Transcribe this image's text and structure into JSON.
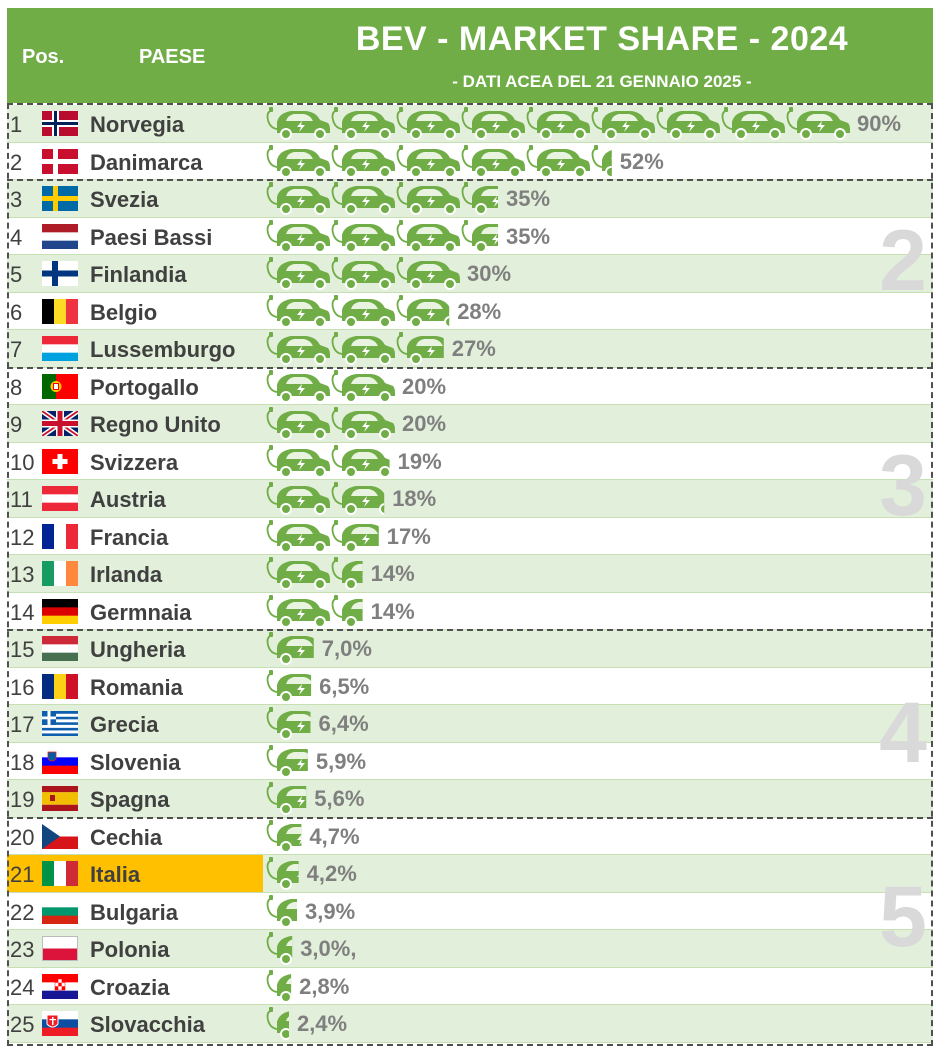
{
  "header": {
    "pos_label": "Pos.",
    "country_label": "PAESE",
    "title": "BEV - MARKET SHARE - 2024",
    "subtitle": "- DATI ACEA DEL 21 GENNAIO 2025 -"
  },
  "colors": {
    "header_green": "#70ad47",
    "car_green": "#70ad47",
    "row_alt": "#e2efda",
    "highlight": "#ffc000",
    "text_gray": "#7f7f7f"
  },
  "groups": [
    "2",
    "3",
    "4",
    "5"
  ],
  "chart_data": {
    "type": "bar",
    "title": "BEV - MARKET SHARE - 2024",
    "subtitle": "- DATI ACEA DEL 21 GENNAIO 2025 -",
    "unit": "%",
    "categories": [
      "Norvegia",
      "Danimarca",
      "Svezia",
      "Paesi Bassi",
      "Finlandia",
      "Belgio",
      "Lussemburgo",
      "Portogallo",
      "Regno Unito",
      "Svizzera",
      "Austria",
      "Francia",
      "Irlanda",
      "Germnaia",
      "Ungheria",
      "Romania",
      "Grecia",
      "Slovenia",
      "Spagna",
      "Cechia",
      "Italia",
      "Bulgaria",
      "Polonia",
      "Croazia",
      "Slovacchia"
    ],
    "values": [
      90,
      52,
      35,
      35,
      30,
      28,
      27,
      20,
      20,
      19,
      18,
      17,
      14,
      14,
      7.0,
      6.5,
      6.4,
      5.9,
      5.6,
      4.7,
      4.2,
      3.9,
      3.0,
      2.8,
      2.4
    ],
    "labels": [
      "90%",
      "52%",
      "35%",
      "35%",
      "30%",
      "28%",
      "27%",
      "20%",
      "20%",
      "19%",
      "18%",
      "17%",
      "14%",
      "14%",
      "7,0%",
      "6,5%",
      "6,4%",
      "5,9%",
      "5,6%",
      "4,7%",
      "4,2%",
      "3,9%",
      "3,0%,",
      "2,8%",
      "2,4%"
    ],
    "positions": [
      1,
      2,
      3,
      4,
      5,
      6,
      7,
      8,
      9,
      10,
      11,
      12,
      13,
      14,
      15,
      16,
      17,
      18,
      19,
      20,
      21,
      22,
      23,
      24,
      25
    ],
    "flags": [
      "NO",
      "DK",
      "SE",
      "NL",
      "FI",
      "BE",
      "LU",
      "PT",
      "GB",
      "CH",
      "AT",
      "FR",
      "IE",
      "DE",
      "HU",
      "RO",
      "GR",
      "SI",
      "ES",
      "CZ",
      "IT",
      "BG",
      "PL",
      "HR",
      "SK"
    ],
    "highlighted": "Italia",
    "icon_unit": "one car icon = 10%"
  }
}
